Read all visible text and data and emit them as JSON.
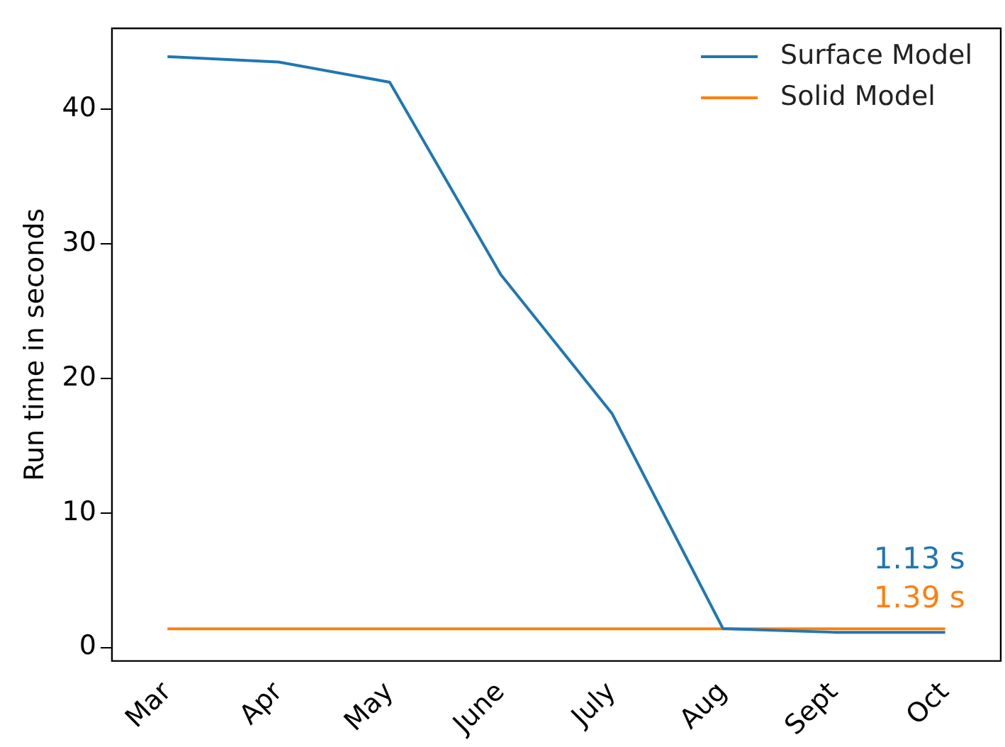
{
  "chart_data": {
    "type": "line",
    "ylabel": "Run time in seconds",
    "categories": [
      "Mar",
      "Apr",
      "May",
      "June",
      "July",
      "Aug",
      "Sept",
      "Oct"
    ],
    "series": [
      {
        "name": "Surface Model",
        "color": "#1f77b4",
        "values": [
          43.9,
          43.5,
          42.0,
          27.7,
          17.4,
          1.4,
          1.13,
          1.13
        ]
      },
      {
        "name": "Solid Model",
        "color": "#ff7f0e",
        "values": [
          1.39,
          1.39,
          1.39,
          1.39,
          1.39,
          1.39,
          1.39,
          1.39
        ]
      }
    ],
    "ylim": [
      -1,
      46
    ],
    "yticks": [
      0,
      10,
      20,
      30,
      40
    ],
    "grid": false,
    "legend": "top right",
    "marker": "none",
    "line_style": "solid",
    "annotations": [
      {
        "text": "1.13 s",
        "x": "Oct",
        "y": 1.13
      },
      {
        "text": "1.39 s",
        "x": "Oct",
        "y": 1.39
      }
    ]
  }
}
